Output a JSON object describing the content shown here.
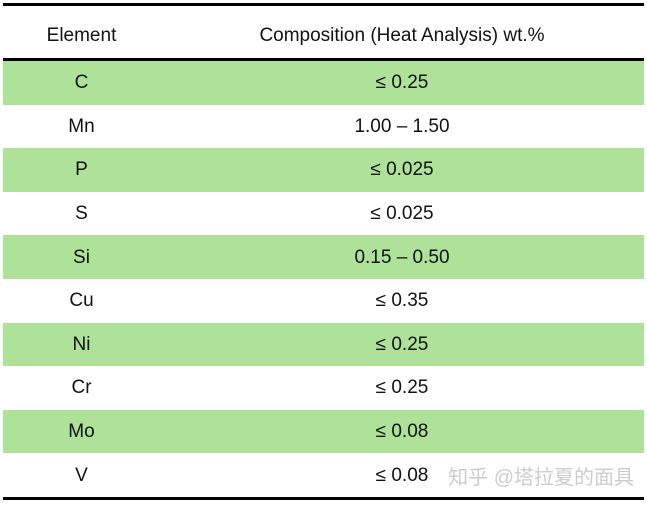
{
  "table": {
    "columns": [
      "Element",
      "Composition (Heat Analysis) wt.%"
    ],
    "rows": [
      {
        "element": "C",
        "composition": "≤ 0.25",
        "highlighted": true
      },
      {
        "element": "Mn",
        "composition": "1.00 – 1.50",
        "highlighted": false
      },
      {
        "element": "P",
        "composition": "≤ 0.025",
        "highlighted": true
      },
      {
        "element": "S",
        "composition": "≤ 0.025",
        "highlighted": false
      },
      {
        "element": "Si",
        "composition": "0.15 – 0.50",
        "highlighted": true
      },
      {
        "element": "Cu",
        "composition": "≤ 0.35",
        "highlighted": false
      },
      {
        "element": "Ni",
        "composition": "≤ 0.25",
        "highlighted": true
      },
      {
        "element": "Cr",
        "composition": "≤ 0.25",
        "highlighted": false
      },
      {
        "element": "Mo",
        "composition": "≤ 0.08",
        "highlighted": true
      },
      {
        "element": "V",
        "composition": "≤ 0.08",
        "highlighted": false
      }
    ],
    "colors": {
      "row_highlight": "#ade298",
      "border": "#000000",
      "text": "#111111"
    }
  },
  "watermark": {
    "text": "知乎 @塔拉夏的面具",
    "color": "#cccccc"
  },
  "chart_data": {
    "type": "table",
    "title": "",
    "columns": [
      "Element",
      "Composition (Heat Analysis) wt.%"
    ],
    "rows": [
      [
        "C",
        "≤ 0.25"
      ],
      [
        "Mn",
        "1.00 – 1.50"
      ],
      [
        "P",
        "≤ 0.025"
      ],
      [
        "S",
        "≤ 0.025"
      ],
      [
        "Si",
        "0.15 – 0.50"
      ],
      [
        "Cu",
        "≤ 0.35"
      ],
      [
        "Ni",
        "≤ 0.25"
      ],
      [
        "Cr",
        "≤ 0.25"
      ],
      [
        "Mo",
        "≤ 0.08"
      ],
      [
        "V",
        "≤ 0.08"
      ]
    ]
  }
}
